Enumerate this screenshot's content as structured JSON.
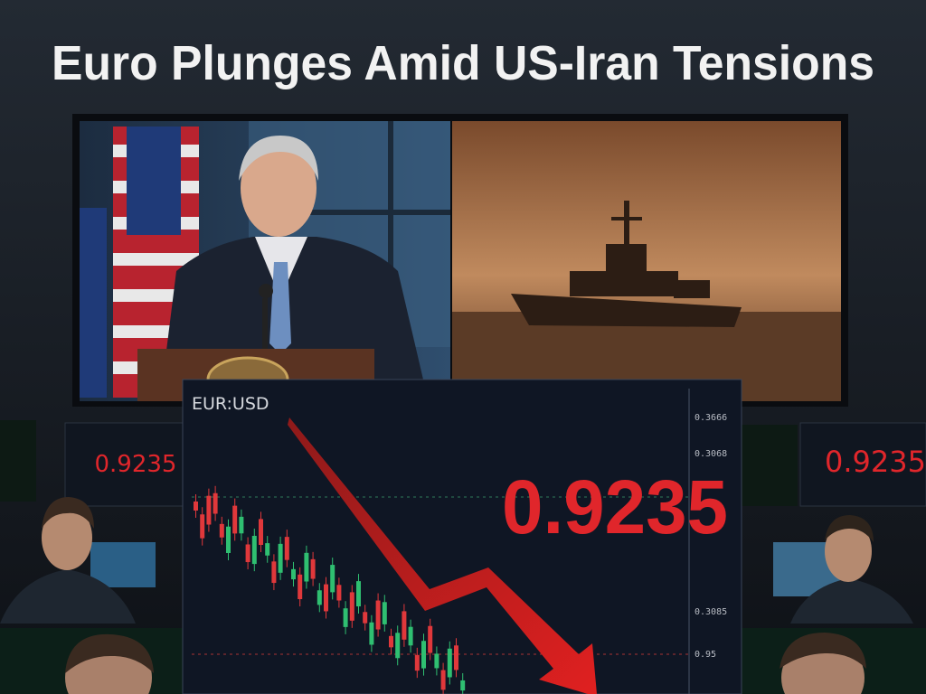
{
  "header": {
    "title": "Euro Plunges Amid US-Iran Tensions"
  },
  "chart_panel": {
    "pair": "EUR:USD",
    "price": "0.9235",
    "axis_labels": [
      "0.3666",
      "0.3068",
      "0.3085",
      "0.95"
    ]
  },
  "monitors": [
    {
      "value": "0.9235"
    },
    {
      "value": "0.9235"
    }
  ]
}
